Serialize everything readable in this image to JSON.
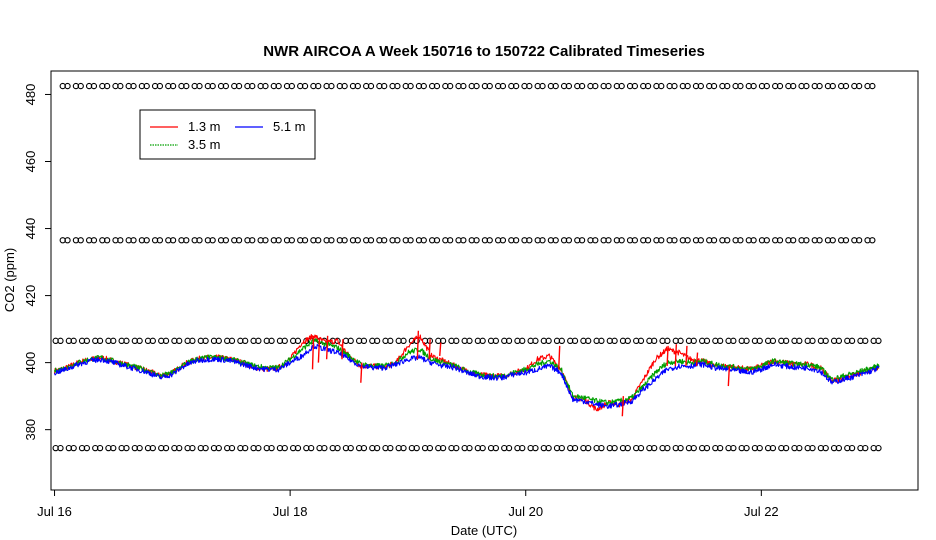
{
  "chart_data": {
    "type": "line",
    "title": "NWR AIRCOA A  Week 150716 to 150722  Calibrated Timeseries",
    "xlabel": "Date (UTC)",
    "ylabel": "CO2 (ppm)",
    "xlim": [
      -0.03,
      7.33
    ],
    "ylim": [
      362,
      487
    ],
    "x_ticks": [
      {
        "value": 0,
        "label": "Jul 16"
      },
      {
        "value": 2,
        "label": "Jul 18"
      },
      {
        "value": 4,
        "label": "Jul 20"
      },
      {
        "value": 6,
        "label": "Jul 22"
      }
    ],
    "y_ticks": [
      {
        "value": 380,
        "label": "380"
      },
      {
        "value": 400,
        "label": "400"
      },
      {
        "value": 420,
        "label": "420"
      },
      {
        "value": 440,
        "label": "440"
      },
      {
        "value": 460,
        "label": "460"
      },
      {
        "value": 480,
        "label": "480"
      }
    ],
    "legend": {
      "placement": "top-left",
      "entries": [
        {
          "label": "1.3 m",
          "color": "#ff0000"
        },
        {
          "label": "3.5 m",
          "color": "#00a000"
        },
        {
          "label": "5.1 m",
          "color": "#0000ff"
        }
      ]
    },
    "series": [
      {
        "name": "5.1 m",
        "color": "#0000ff",
        "x": [
          0.0,
          0.1,
          0.2,
          0.3,
          0.4,
          0.5,
          0.6,
          0.7,
          0.8,
          0.9,
          1.0,
          1.1,
          1.2,
          1.3,
          1.4,
          1.5,
          1.6,
          1.7,
          1.8,
          1.9,
          2.0,
          2.1,
          2.2,
          2.3,
          2.4,
          2.5,
          2.6,
          2.7,
          2.8,
          2.9,
          3.0,
          3.1,
          3.2,
          3.3,
          3.4,
          3.5,
          3.6,
          3.7,
          3.8,
          3.9,
          4.0,
          4.1,
          4.2,
          4.3,
          4.4,
          4.5,
          4.6,
          4.7,
          4.8,
          4.9,
          5.0,
          5.1,
          5.2,
          5.3,
          5.4,
          5.5,
          5.6,
          5.7,
          5.8,
          5.9,
          6.0,
          6.1,
          6.2,
          6.3,
          6.4,
          6.5,
          6.6,
          6.7,
          6.8,
          6.9,
          7.0
        ],
        "values": [
          397,
          398,
          399.5,
          400.5,
          401,
          400,
          399,
          398,
          397,
          395.5,
          396.5,
          399,
          400.5,
          401,
          401,
          400.5,
          399.5,
          398.5,
          398,
          398,
          400,
          402,
          405,
          404,
          403,
          401,
          399,
          398.5,
          398.5,
          399.5,
          401,
          401.5,
          400,
          399,
          398.5,
          397,
          396,
          395.5,
          395.5,
          396.5,
          397,
          398,
          399,
          397,
          389,
          388.5,
          387.5,
          387,
          387.5,
          388.5,
          392,
          395,
          398,
          399,
          399,
          399.5,
          398.5,
          398,
          397.5,
          397,
          398,
          399.5,
          399,
          398.5,
          398.5,
          397.5,
          394,
          395,
          396,
          397,
          398.5
        ]
      },
      {
        "name": "3.5 m",
        "color": "#00a000",
        "x": [
          0.0,
          0.1,
          0.2,
          0.3,
          0.4,
          0.5,
          0.6,
          0.7,
          0.8,
          0.9,
          1.0,
          1.1,
          1.2,
          1.3,
          1.4,
          1.5,
          1.6,
          1.7,
          1.8,
          1.9,
          2.0,
          2.1,
          2.2,
          2.3,
          2.4,
          2.5,
          2.6,
          2.7,
          2.8,
          2.9,
          3.0,
          3.1,
          3.2,
          3.3,
          3.4,
          3.5,
          3.6,
          3.7,
          3.8,
          3.9,
          4.0,
          4.1,
          4.2,
          4.3,
          4.4,
          4.5,
          4.6,
          4.7,
          4.8,
          4.9,
          5.0,
          5.1,
          5.2,
          5.3,
          5.4,
          5.5,
          5.6,
          5.7,
          5.8,
          5.9,
          6.0,
          6.1,
          6.2,
          6.3,
          6.4,
          6.5,
          6.6,
          6.7,
          6.8,
          6.9,
          7.0
        ],
        "values": [
          397.5,
          398.5,
          400,
          401,
          401.5,
          400.5,
          399.5,
          398.5,
          397.5,
          396,
          397,
          399.5,
          401,
          401.5,
          401.5,
          401,
          400,
          399,
          398.5,
          398.5,
          401,
          404,
          406.5,
          405.5,
          404.5,
          402,
          399.5,
          399,
          399,
          400,
          403,
          404,
          401,
          400,
          399,
          397.5,
          396.5,
          396,
          396,
          397,
          398,
          399.5,
          400.5,
          398,
          390,
          389.5,
          388.5,
          388,
          388.5,
          389.5,
          393,
          397,
          400,
          400.5,
          400,
          400.5,
          399.5,
          399,
          398.5,
          398,
          399,
          400.5,
          400,
          399.5,
          399.5,
          398.5,
          395,
          396,
          397,
          398,
          399
        ]
      },
      {
        "name": "1.3 m",
        "color": "#ff0000",
        "x": [
          0.0,
          0.1,
          0.2,
          0.3,
          0.4,
          0.5,
          0.6,
          0.7,
          0.8,
          0.9,
          1.0,
          1.1,
          1.2,
          1.3,
          1.4,
          1.5,
          1.6,
          1.7,
          1.8,
          1.9,
          2.0,
          2.1,
          2.2,
          2.3,
          2.4,
          2.5,
          2.6,
          2.7,
          2.8,
          2.9,
          3.0,
          3.1,
          3.2,
          3.3,
          3.4,
          3.5,
          3.6,
          3.7,
          3.8,
          3.9,
          4.0,
          4.1,
          4.2,
          4.3,
          4.4,
          4.5,
          4.6,
          4.7,
          4.8,
          4.9,
          5.0,
          5.1,
          5.2,
          5.3,
          5.4,
          5.5,
          5.6,
          5.7,
          5.8,
          5.9,
          6.0,
          6.1,
          6.2,
          6.3,
          6.4,
          6.5,
          6.6,
          6.7,
          6.8,
          6.9,
          7.0
        ],
        "values": [
          397.5,
          398.5,
          400,
          401,
          401.5,
          400.5,
          399.5,
          398.5,
          397.5,
          396,
          397,
          399.5,
          401,
          401.5,
          401.5,
          401,
          400,
          398.5,
          398,
          398.5,
          401,
          406,
          408,
          406,
          406.5,
          402,
          399,
          399,
          398.5,
          400,
          405,
          408,
          402,
          400.5,
          399,
          397.5,
          396.5,
          396,
          396,
          397,
          398,
          401,
          402,
          398,
          389.5,
          389,
          386,
          388,
          387.5,
          389,
          395,
          401,
          404,
          403,
          401,
          400.5,
          399,
          399,
          398.5,
          398,
          399,
          400.5,
          400,
          399.5,
          399.5,
          398.5,
          394.5,
          395.5,
          396.5,
          397.5,
          398.5
        ]
      }
    ],
    "spikes": [
      {
        "series": "1.3 m",
        "x": 2.19,
        "values": [
          398,
          408
        ]
      },
      {
        "series": "1.3 m",
        "x": 2.24,
        "values": [
          400,
          407
        ]
      },
      {
        "series": "1.3 m",
        "x": 2.31,
        "values": [
          401,
          408
        ]
      },
      {
        "series": "1.3 m",
        "x": 2.44,
        "values": [
          401,
          407
        ]
      },
      {
        "series": "1.3 m",
        "x": 2.6,
        "values": [
          394,
          400
        ]
      },
      {
        "series": "1.3 m",
        "x": 3.08,
        "values": [
          401,
          409.5
        ]
      },
      {
        "series": "1.3 m",
        "x": 3.18,
        "values": [
          401,
          407
        ]
      },
      {
        "series": "1.3 m",
        "x": 3.27,
        "values": [
          402,
          406
        ]
      },
      {
        "series": "1.3 m",
        "x": 4.28,
        "values": [
          398,
          405
        ]
      },
      {
        "series": "1.3 m",
        "x": 5.2,
        "values": [
          399,
          405
        ]
      },
      {
        "series": "1.3 m",
        "x": 5.27,
        "values": [
          399,
          405.5
        ]
      },
      {
        "series": "1.3 m",
        "x": 5.36,
        "values": [
          399,
          405
        ]
      },
      {
        "series": "1.3 m",
        "x": 5.45,
        "values": [
          399,
          403
        ]
      },
      {
        "series": "1.3 m",
        "x": 5.72,
        "values": [
          393,
          399
        ]
      },
      {
        "series": "1.3 m",
        "x": 4.82,
        "values": [
          384,
          390
        ]
      }
    ],
    "reference_markers": [
      {
        "y": 482.5,
        "x_start": 0.09,
        "x_end": 7.0,
        "x_step": 0.112
      },
      {
        "y": 436.5,
        "x_start": 0.09,
        "x_end": 7.0,
        "x_step": 0.112
      },
      {
        "y": 406.5,
        "x_start": 0.03,
        "x_end": 7.0,
        "x_step": 0.112
      },
      {
        "y": 374.5,
        "x_start": 0.03,
        "x_end": 7.0,
        "x_step": 0.112
      }
    ]
  }
}
